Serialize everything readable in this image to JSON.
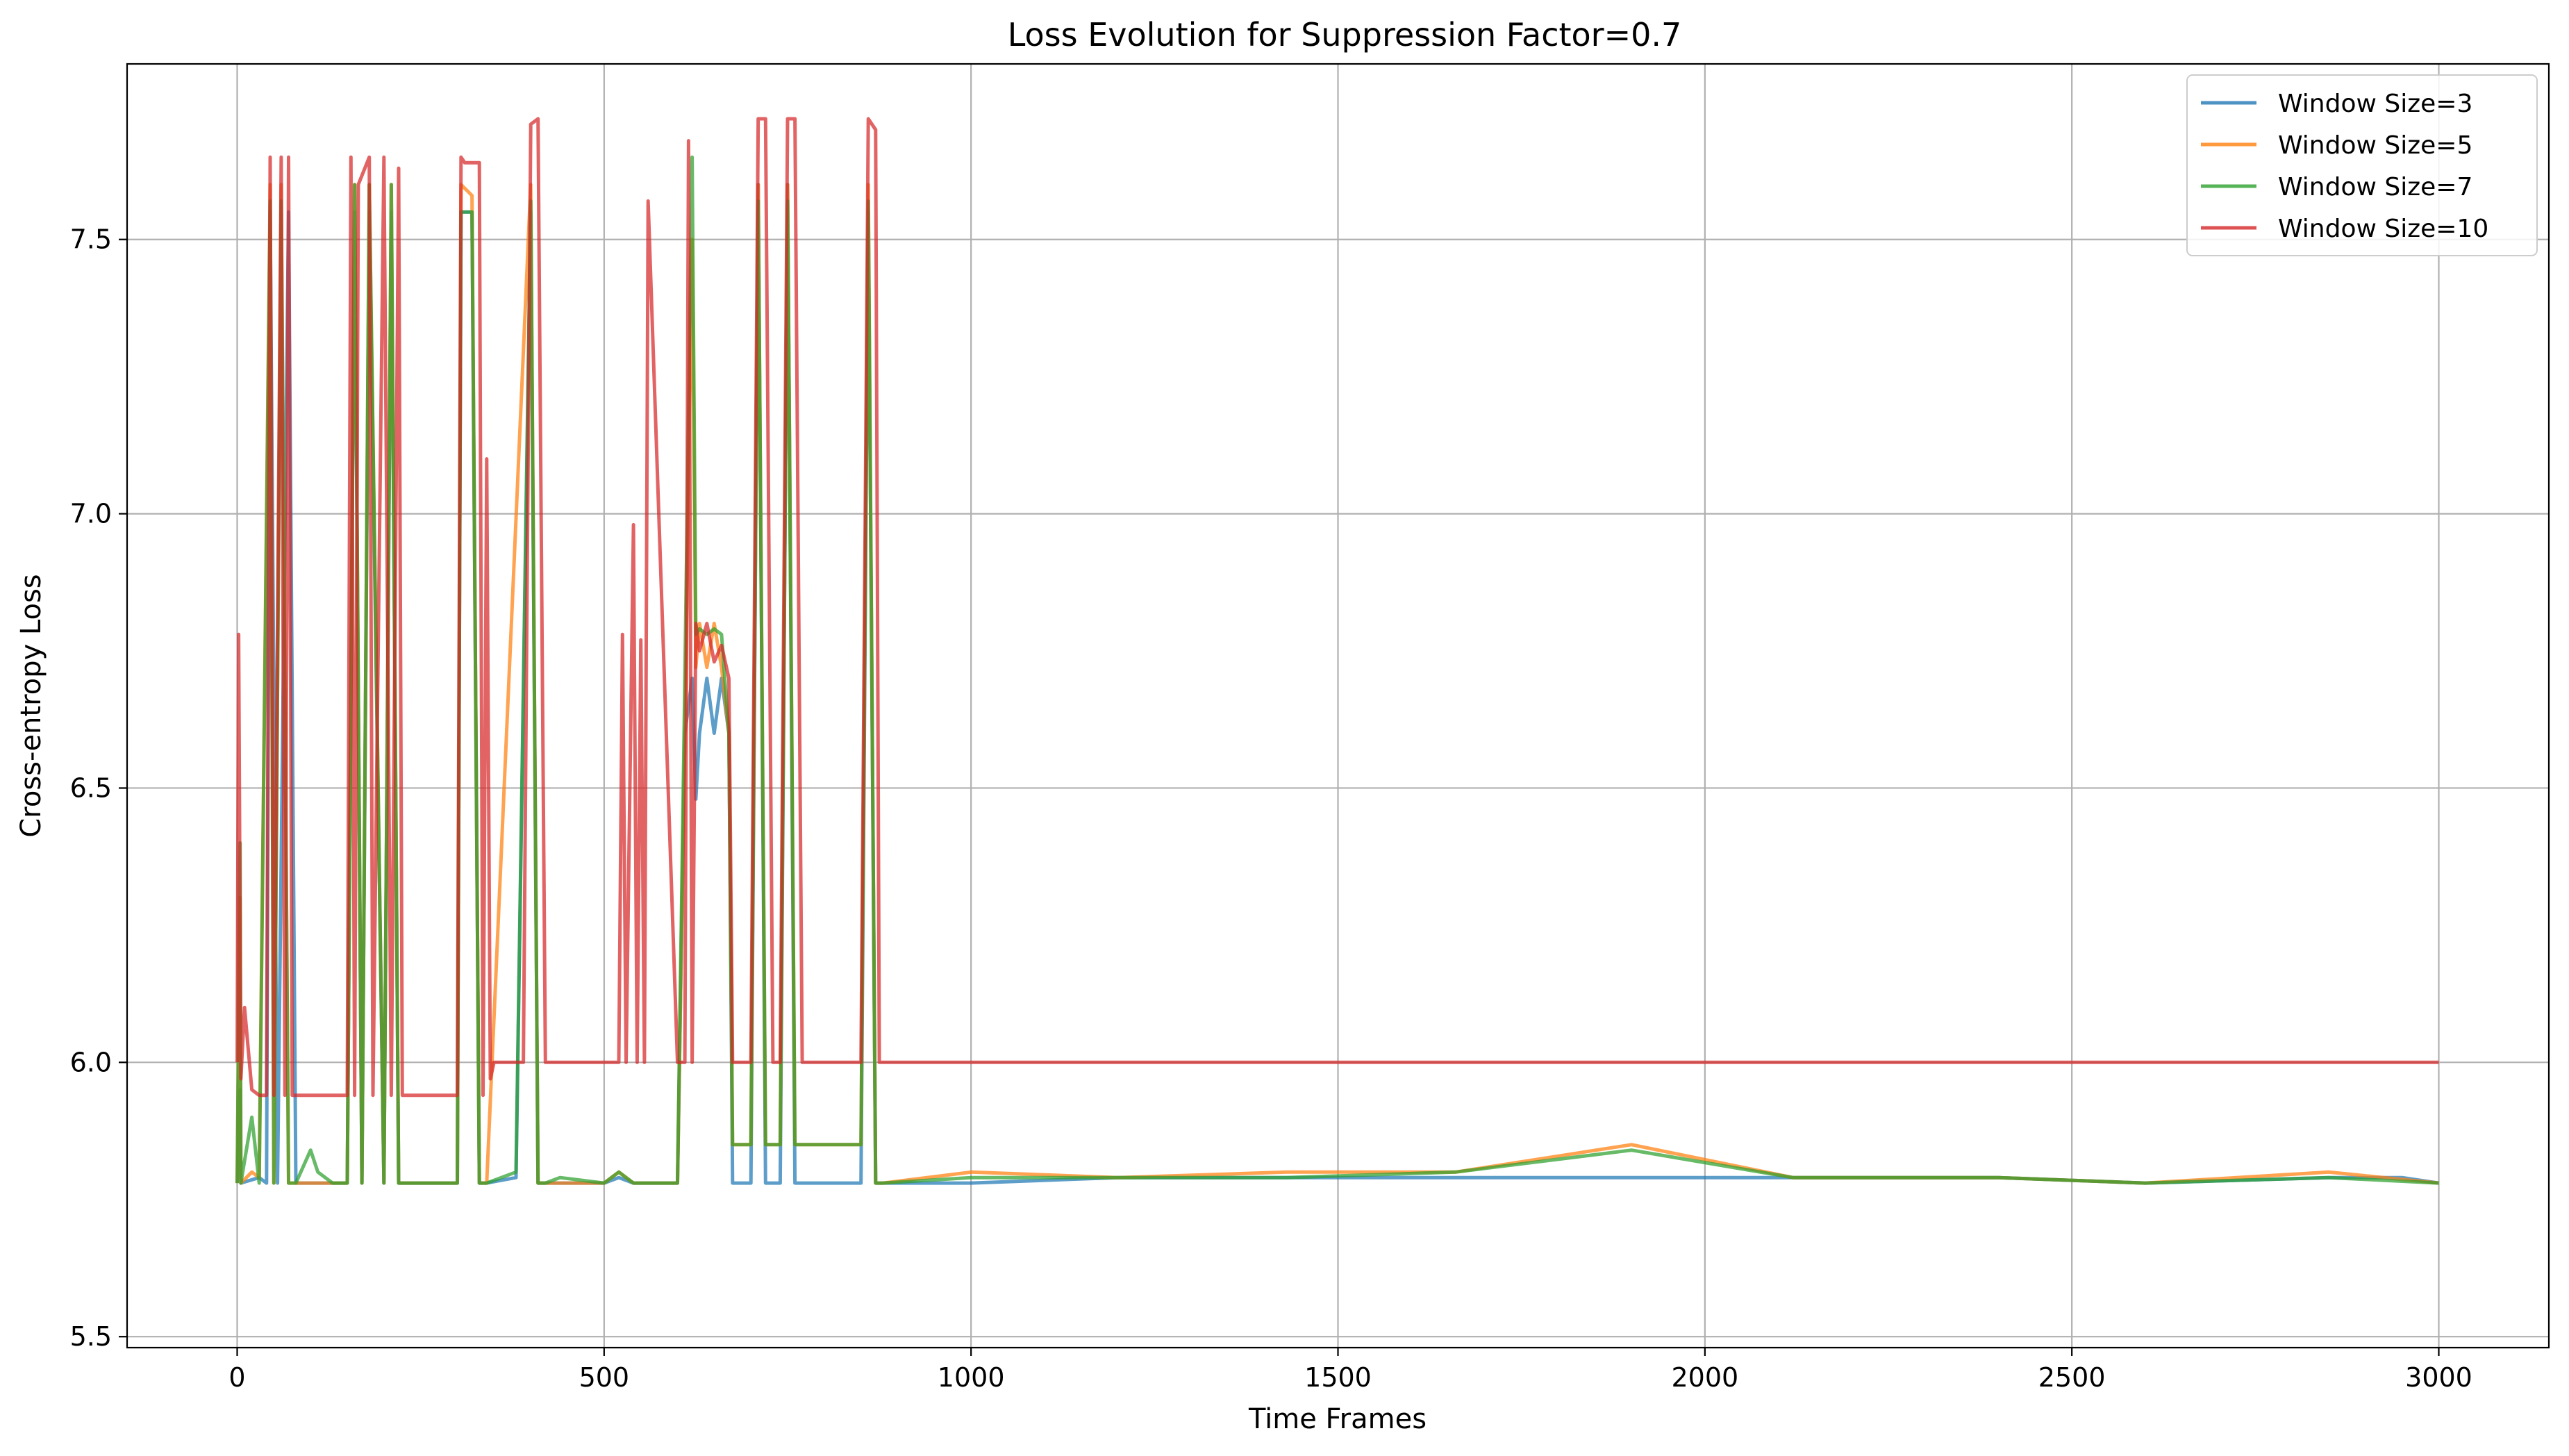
{
  "chart_data": {
    "type": "line",
    "title": "Loss Evolution for Suppression Factor=0.7",
    "xlabel": "Time Frames",
    "ylabel": "Cross-entropy Loss",
    "xlim": [
      -150,
      3150
    ],
    "ylim": [
      5.48,
      7.82
    ],
    "xticks": [
      0,
      500,
      1000,
      1500,
      2000,
      2500,
      3000
    ],
    "yticks": [
      5.5,
      6.0,
      6.5,
      7.0,
      7.5
    ],
    "xtick_labels": [
      "0",
      "500",
      "1000",
      "1500",
      "2000",
      "2500",
      "3000"
    ],
    "ytick_labels": [
      "5.5",
      "6.0",
      "6.5",
      "7.0",
      "7.5"
    ],
    "grid": true,
    "legend_position": "top-right",
    "series": [
      {
        "name": "Window Size=3",
        "color": "#1f77b4",
        "x": [
          0,
          4,
          5,
          30,
          40,
          45,
          55,
          70,
          80,
          150,
          160,
          170,
          180,
          200,
          210,
          220,
          300,
          305,
          320,
          330,
          340,
          380,
          400,
          410,
          420,
          500,
          520,
          540,
          560,
          600,
          610,
          620,
          625,
          630,
          640,
          650,
          660,
          670,
          675,
          680,
          700,
          710,
          720,
          740,
          750,
          760,
          800,
          850,
          860,
          870,
          880,
          1000,
          1200,
          1430,
          1660,
          1900,
          2120,
          2400,
          2600,
          2850,
          2950,
          3000
        ],
        "y": [
          5.78,
          5.95,
          5.78,
          5.79,
          5.78,
          7.55,
          5.78,
          7.55,
          5.78,
          5.78,
          7.55,
          5.78,
          7.55,
          5.78,
          7.55,
          5.78,
          5.78,
          7.55,
          7.55,
          5.78,
          5.78,
          5.79,
          7.55,
          5.78,
          5.78,
          5.78,
          5.79,
          5.78,
          5.78,
          5.78,
          6.6,
          6.7,
          6.48,
          6.6,
          6.7,
          6.6,
          6.7,
          6.6,
          5.78,
          5.78,
          5.78,
          7.6,
          5.78,
          5.78,
          7.6,
          5.78,
          5.78,
          5.78,
          7.55,
          5.78,
          5.78,
          5.78,
          5.79,
          5.79,
          5.79,
          5.79,
          5.79,
          5.79,
          5.78,
          5.79,
          5.79,
          5.78
        ]
      },
      {
        "name": "Window Size=5",
        "color": "#ff7f0e",
        "x": [
          0,
          4,
          5,
          20,
          30,
          45,
          50,
          60,
          70,
          80,
          150,
          160,
          170,
          180,
          200,
          210,
          220,
          300,
          305,
          320,
          330,
          340,
          400,
          410,
          420,
          500,
          520,
          540,
          560,
          600,
          610,
          620,
          625,
          630,
          640,
          650,
          660,
          670,
          675,
          680,
          700,
          710,
          720,
          740,
          750,
          760,
          800,
          850,
          860,
          870,
          880,
          1000,
          1200,
          1430,
          1660,
          1900,
          2120,
          2400,
          2600,
          2850,
          3000
        ],
        "y": [
          5.78,
          6.3,
          5.78,
          5.8,
          5.79,
          7.6,
          5.78,
          7.6,
          5.78,
          5.78,
          5.78,
          7.6,
          5.78,
          7.6,
          5.78,
          7.6,
          5.78,
          5.78,
          7.6,
          7.58,
          5.78,
          5.78,
          7.6,
          5.78,
          5.78,
          5.78,
          5.8,
          5.78,
          5.78,
          5.78,
          6.6,
          7.5,
          6.72,
          6.8,
          6.72,
          6.8,
          6.72,
          6.6,
          5.85,
          5.85,
          5.85,
          7.6,
          5.85,
          5.85,
          7.6,
          5.85,
          5.85,
          5.85,
          7.6,
          5.78,
          5.78,
          5.8,
          5.79,
          5.8,
          5.8,
          5.85,
          5.79,
          5.79,
          5.78,
          5.8,
          5.78
        ]
      },
      {
        "name": "Window Size=7",
        "color": "#2ca02c",
        "x": [
          0,
          4,
          5,
          20,
          30,
          45,
          50,
          60,
          70,
          80,
          100,
          110,
          130,
          150,
          160,
          170,
          180,
          200,
          210,
          220,
          300,
          305,
          320,
          330,
          340,
          360,
          380,
          400,
          410,
          420,
          440,
          500,
          520,
          540,
          560,
          600,
          610,
          620,
          625,
          630,
          640,
          650,
          660,
          670,
          675,
          680,
          700,
          710,
          720,
          740,
          750,
          760,
          800,
          850,
          860,
          870,
          880,
          1000,
          1200,
          1430,
          1660,
          1900,
          2120,
          2400,
          2600,
          2850,
          3000
        ],
        "y": [
          5.78,
          6.4,
          5.78,
          5.9,
          5.78,
          7.57,
          5.78,
          7.57,
          5.78,
          5.78,
          5.84,
          5.8,
          5.78,
          5.78,
          7.6,
          5.78,
          7.6,
          5.78,
          7.6,
          5.78,
          5.78,
          7.55,
          7.55,
          5.78,
          5.78,
          5.79,
          5.8,
          7.57,
          5.78,
          5.78,
          5.79,
          5.78,
          5.8,
          5.78,
          5.78,
          5.78,
          6.7,
          7.65,
          6.78,
          6.79,
          6.78,
          6.79,
          6.78,
          6.6,
          5.85,
          5.85,
          5.85,
          7.57,
          5.85,
          5.85,
          7.57,
          5.85,
          5.85,
          5.85,
          7.57,
          5.78,
          5.78,
          5.79,
          5.79,
          5.79,
          5.8,
          5.84,
          5.79,
          5.79,
          5.78,
          5.79,
          5.78
        ]
      },
      {
        "name": "Window Size=10",
        "color": "#d62728",
        "x": [
          0,
          2,
          5,
          10,
          20,
          30,
          40,
          45,
          50,
          60,
          65,
          70,
          75,
          80,
          100,
          150,
          155,
          160,
          165,
          180,
          185,
          200,
          210,
          220,
          225,
          250,
          300,
          305,
          310,
          320,
          330,
          335,
          340,
          345,
          350,
          380,
          390,
          400,
          410,
          420,
          450,
          500,
          520,
          525,
          530,
          540,
          545,
          550,
          555,
          560,
          600,
          610,
          615,
          620,
          625,
          630,
          640,
          650,
          660,
          670,
          675,
          680,
          690,
          700,
          710,
          720,
          730,
          740,
          750,
          760,
          770,
          800,
          850,
          860,
          865,
          870,
          875,
          880,
          900,
          1000,
          1200,
          1500,
          1800,
          2000,
          2200,
          2500,
          2800,
          3000
        ],
        "y": [
          6.0,
          6.78,
          5.97,
          6.1,
          5.95,
          5.94,
          5.94,
          7.65,
          5.94,
          7.65,
          5.94,
          7.65,
          5.94,
          5.94,
          5.94,
          5.94,
          7.65,
          5.94,
          7.6,
          7.65,
          5.94,
          7.65,
          5.94,
          7.63,
          5.94,
          5.94,
          5.94,
          7.65,
          7.64,
          7.64,
          7.64,
          5.94,
          7.1,
          5.97,
          6.0,
          6.0,
          6.0,
          7.71,
          7.72,
          6.0,
          6.0,
          6.0,
          6.0,
          6.78,
          6.0,
          6.98,
          6.0,
          6.77,
          6.0,
          7.57,
          6.0,
          6.0,
          7.68,
          6.0,
          6.8,
          6.75,
          6.8,
          6.73,
          6.76,
          6.7,
          6.0,
          6.0,
          6.0,
          6.0,
          7.72,
          7.72,
          6.0,
          6.0,
          7.72,
          7.72,
          6.0,
          6.0,
          6.0,
          7.72,
          7.71,
          7.7,
          6.0,
          6.0,
          6.0,
          6.0,
          6.0,
          6.0,
          6.0,
          6.0,
          6.0,
          6.0,
          6.0,
          6.0
        ]
      }
    ]
  }
}
